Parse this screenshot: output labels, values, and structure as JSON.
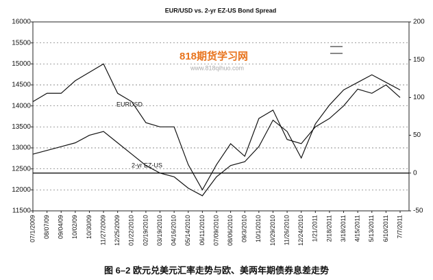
{
  "chart_data": {
    "type": "line",
    "title": "EUR/USD vs. 2-yr EZ-US  Bond Spread",
    "categories": [
      "07/1/2009",
      "08/07/09",
      "09/04/09",
      "10/02/09",
      "10/30/09",
      "11/27/2009",
      "12/25/2009",
      "01/22/2010",
      "02/19/2010",
      "03/19/2010",
      "04/16/2010",
      "05/14/2010",
      "06/11/2010",
      "07/09/2010",
      "08/06/2010",
      "09/3/2010",
      "10/1/2010",
      "10/29/2010",
      "11/26/2010",
      "12/24/2010",
      "1/21/2011",
      "2/18/2011",
      "3/18/2011",
      "4/15/2011",
      "5/13/2011",
      "6/10/2011",
      "7/7/2011"
    ],
    "series": [
      {
        "name": "EURUSD",
        "color": "#111111",
        "values": [
          14100,
          14300,
          14300,
          14600,
          14800,
          15000,
          14300,
          14100,
          13600,
          13500,
          13500,
          12600,
          12000,
          12600,
          13100,
          12800,
          13700,
          13900,
          13200,
          13100,
          13500,
          13700,
          14000,
          14400,
          14300,
          14500,
          14200
        ]
      },
      {
        "name": "2-yr EZ-US",
        "color": "#111111",
        "axis": "y2",
        "values": [
          25,
          30,
          35,
          40,
          50,
          55,
          40,
          25,
          10,
          0,
          -5,
          -20,
          -30,
          -5,
          10,
          15,
          35,
          70,
          55,
          20,
          65,
          90,
          110,
          120,
          130,
          120,
          110
        ]
      }
    ],
    "ylim": [
      11500,
      16000
    ],
    "yticks": [
      11500,
      12000,
      12500,
      13000,
      13500,
      14000,
      14500,
      15000,
      15500,
      16000
    ],
    "y2lim": [
      -50,
      200
    ],
    "y2ticks": [
      -50,
      0,
      50,
      100,
      150,
      200
    ],
    "grid": true,
    "watermark": {
      "text": "818期货学习网",
      "url": "www.818qihuo.com"
    },
    "caption": "图 6–2   欧元兑美元汇率走势与欧、美两年期债券息差走势"
  }
}
